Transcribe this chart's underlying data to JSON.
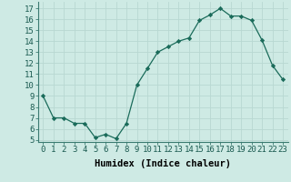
{
  "x": [
    0,
    1,
    2,
    3,
    4,
    5,
    6,
    7,
    8,
    9,
    10,
    11,
    12,
    13,
    14,
    15,
    16,
    17,
    18,
    19,
    20,
    21,
    22,
    23
  ],
  "y": [
    9,
    7,
    7,
    6.5,
    6.5,
    5.2,
    5.5,
    5.1,
    6.5,
    10,
    11.5,
    13,
    13.5,
    14,
    14.3,
    15.9,
    16.4,
    17,
    16.3,
    16.3,
    15.9,
    14.1,
    11.8,
    10.5
  ],
  "line_color": "#1a6b5a",
  "marker": "D",
  "marker_size": 2.2,
  "bg_color": "#ceeae4",
  "grid_color": "#b8d8d2",
  "xlabel": "Humidex (Indice chaleur)",
  "xlim": [
    -0.5,
    23.5
  ],
  "ylim": [
    4.8,
    17.6
  ],
  "yticks": [
    5,
    6,
    7,
    8,
    9,
    10,
    11,
    12,
    13,
    14,
    15,
    16,
    17
  ],
  "xlabel_fontsize": 7.5,
  "tick_fontsize": 6.5
}
